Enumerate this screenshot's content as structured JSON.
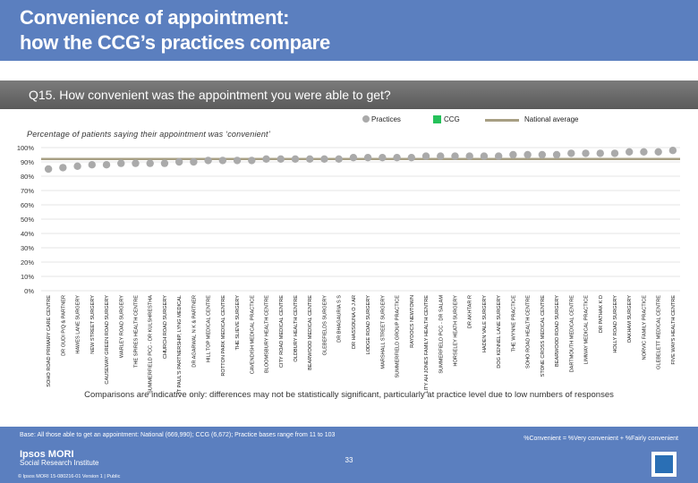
{
  "title": "Convenience of appointment:\nhow the CCG’s practices compare",
  "question": "Q15. How convenient was the appointment you were able to get?",
  "legend": {
    "practices": "Practices",
    "ccg": "CCG",
    "national": "National average"
  },
  "subtitle": "Percentage of patients saying their appointment was ‘convenient’",
  "note": "Comparisons are indicative only: differences may not be statistically significant, particularly at practice level due to low numbers of responses",
  "base": "Base: All those able to get an appointment: National (669,990); CCG (6,672); Practice bases range from 11 to 103",
  "definition": "%Convenient = %Very convenient + %Fairly convenient",
  "page_number": "33",
  "brand": {
    "line1": "Ipsos MORI",
    "line2": "Social Research Institute"
  },
  "copyright": "© Ipsos MORI     15-080216-01 Version 1 | Public",
  "colors": {
    "header": "#5b7fbf",
    "practices": "#aaaaaa",
    "ccg": "#25c15a",
    "national": "#a79f83",
    "question_bar": "#666666"
  },
  "chart_data": {
    "type": "scatter",
    "ylim": [
      0,
      100
    ],
    "yticks": [
      "0%",
      "10%",
      "20%",
      "30%",
      "40%",
      "50%",
      "60%",
      "70%",
      "80%",
      "90%",
      "100%"
    ],
    "national_average": 92,
    "ccg_value": 94,
    "categories": [
      "SOHO ROAD PRIMARY CARE CENTRE",
      "DR GUDI P/Q & PARTNER",
      "HAWES LANE SURGERY",
      "NEW STREET SURGERY",
      "CAUSEWAY GREEN ROAD SURGERY",
      "WARLEY ROAD SURGERY",
      "THE SPIRES HEALTH CENTRE",
      "SUMMERFIELD PCC - DR KULSHRESTHA",
      "CHURCH ROAD SURGERY",
      "ST PAUL'S PARTNERSHIP, LYNG MEDICAL",
      "DR AGARWAL N K & PARTNER",
      "HILL TOP MEDICAL CENTRE",
      "ROTTON PARK MEDICAL CENTRE",
      "THE SLIEVE SURGERY",
      "CAVENDISH MEDICAL PRACTICE",
      "BLOOMSBURY HEALTH CENTRE",
      "CITY ROAD MEDICAL CENTRE",
      "OLDBURY HEALTH CENTRE",
      "BEARWOOD MEDICAL CENTRE",
      "GLEBEFIELDS SURGERY",
      "DR BHAGAURIA S S",
      "DR HASSOUNA O J AR",
      "LODGE ROAD SURGERY",
      "MARSHALL STREET SURGERY",
      "SUMMERFIELD GROUP PRACTICE",
      "RAYDOCS NEWTOWN",
      "MODALITY AH JONES FAMILY HEALTH CENTRE",
      "SUMMERFIELD PCC - DR SALAM",
      "HORSELEY HEATH SURGERY",
      "DR AKHTAR R",
      "HADEN VALE SURGERY",
      "DOG KENNEL LANE SURGERY",
      "THE WYNNE PRACTICE",
      "SOHO ROAD HEALTH CENTRE",
      "STONE CROSS MEDICAL CENTRE",
      "BEARWOOD ROAD SURGERY",
      "DARTMOUTH MEDICAL CENTRE",
      "LIMWAY MEDICAL PRACTICE",
      "DR PATHAK K D",
      "HOLLY ROAD SURGERY",
      "OAKHAM SURGERY",
      "NORVIC FAMILY PRACTICE",
      "GLEBELETT MEDICAL CENTRE",
      "FIVE WAYS HEALTH CENTRE"
    ],
    "values": [
      85,
      86,
      87,
      88,
      88,
      89,
      89,
      89,
      89,
      90,
      90,
      91,
      91,
      91,
      91,
      92,
      92,
      92,
      92,
      92,
      92,
      93,
      93,
      93,
      93,
      93,
      94,
      94,
      94,
      94,
      94,
      94,
      95,
      95,
      95,
      95,
      96,
      96,
      96,
      96,
      97,
      97,
      97,
      98
    ]
  }
}
